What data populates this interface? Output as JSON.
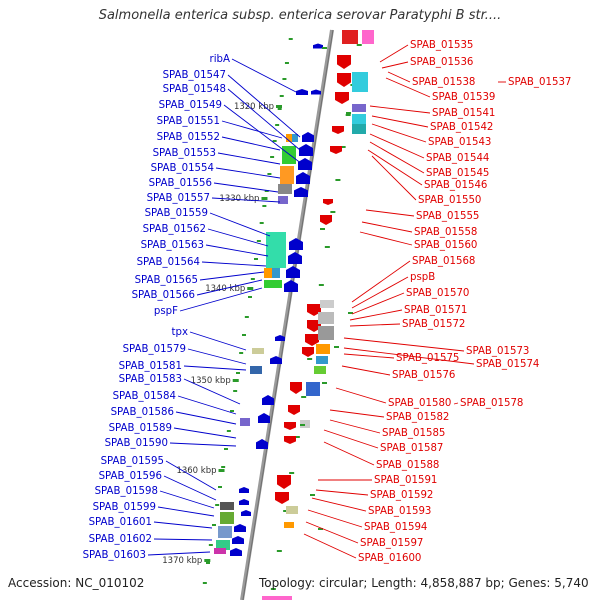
{
  "title": "Salmonella enterica subsp. enterica serovar Paratyphi B str....",
  "footer": {
    "accession": "Accession: NC_010102",
    "summary": "Topology: circular; Length: 4,858,887 bp; Genes: 5,740"
  },
  "colors": {
    "backbone": "#9a9a9a",
    "reverse_strand": "#0000cc",
    "forward_strand": "#e00000",
    "tick": "#2a9a2a"
  },
  "kbp_ticks": [
    "1320 kbp",
    "1330 kbp",
    "1340 kbp",
    "1350 kbp",
    "1360 kbp",
    "1370 kbp"
  ],
  "left_labels": [
    "ribA",
    "SPAB_01547",
    "SPAB_01548",
    "SPAB_01549",
    "SPAB_01551",
    "SPAB_01552",
    "SPAB_01553",
    "SPAB_01554",
    "SPAB_01556",
    "SPAB_01557",
    "SPAB_01559",
    "SPAB_01562",
    "SPAB_01563",
    "SPAB_01564",
    "SPAB_01565",
    "SPAB_01566",
    "pspF",
    "tpx",
    "SPAB_01579",
    "SPAB_01581",
    "SPAB_01583",
    "SPAB_01584",
    "SPAB_01586",
    "SPAB_01589",
    "SPAB_01590",
    "SPAB_01595",
    "SPAB_01596",
    "SPAB_01598",
    "SPAB_01599",
    "SPAB_01601",
    "SPAB_01602",
    "SPAB_01603"
  ],
  "right_labels": [
    "SPAB_01535",
    "SPAB_01536",
    "SPAB_01538",
    "SPAB_01537",
    "SPAB_01539",
    "SPAB_01541",
    "SPAB_01542",
    "SPAB_01543",
    "SPAB_01544",
    "SPAB_01545",
    "SPAB_01546",
    "SPAB_01550",
    "SPAB_01555",
    "SPAB_01558",
    "SPAB_01560",
    "SPAB_01568",
    "pspB",
    "SPAB_01570",
    "SPAB_01571",
    "SPAB_01572",
    "SPAB_01573",
    "SPAB_01574",
    "SPAB_01575",
    "SPAB_01576",
    "SPAB_01580",
    "SPAB_01578",
    "SPAB_01582",
    "SPAB_01585",
    "SPAB_01587",
    "SPAB_01588",
    "SPAB_01591",
    "SPAB_01592",
    "SPAB_01593",
    "SPAB_01594",
    "SPAB_01597",
    "SPAB_01600"
  ]
}
